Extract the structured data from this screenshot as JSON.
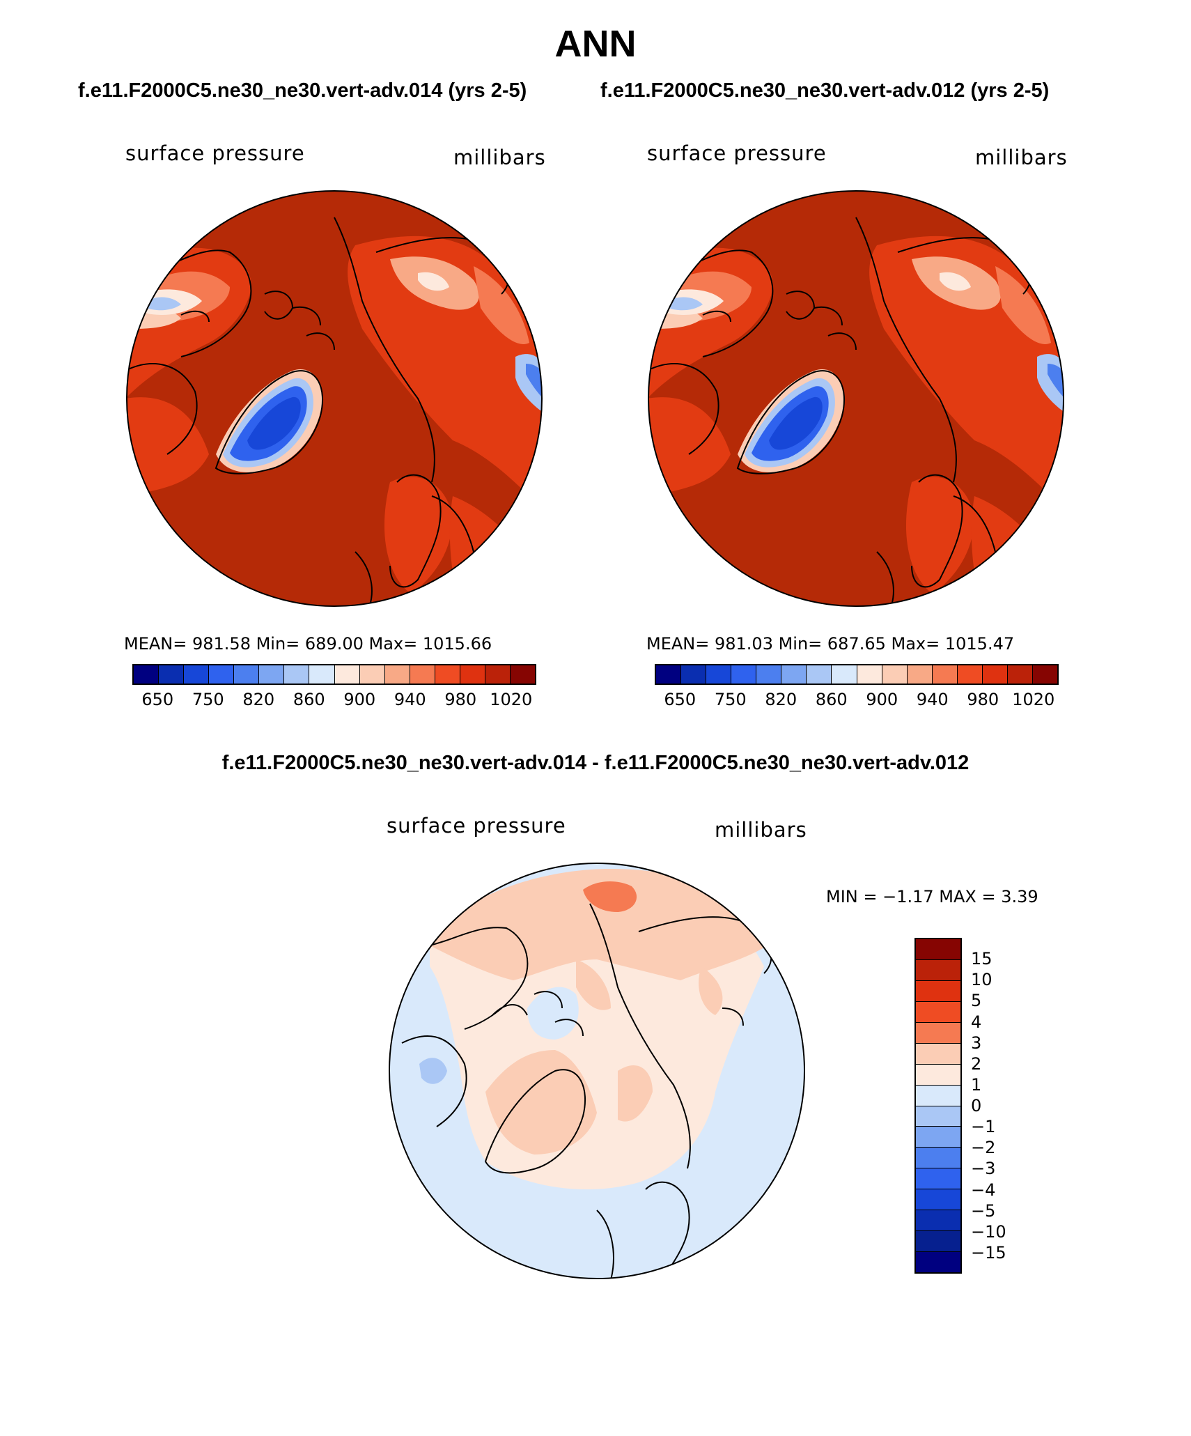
{
  "title": "ANN",
  "panels": [
    {
      "case_title": "f.e11.F2000C5.ne30_ne30.vert-adv.014 (yrs 2-5)",
      "variable": "surface pressure",
      "units": "millibars",
      "stats": "MEAN= 981.58   Min= 689.00   Max= 1015.66"
    },
    {
      "case_title": "f.e11.F2000C5.ne30_ne30.vert-adv.012 (yrs 2-5)",
      "variable": "surface pressure",
      "units": "millibars",
      "stats": "MEAN= 981.03   Min= 687.65   Max= 1015.47"
    }
  ],
  "diff_panel": {
    "case_title": "f.e11.F2000C5.ne30_ne30.vert-adv.014 - f.e11.F2000C5.ne30_ne30.vert-adv.012",
    "variable": "surface pressure",
    "units": "millibars",
    "stats": "MIN =   −1.17  MAX =     3.39"
  },
  "colorbar_main": {
    "colors": [
      "#000080",
      "#0a2eb0",
      "#1747d8",
      "#2f62ee",
      "#4c7fef",
      "#7da6f2",
      "#aac7f5",
      "#d9e9fb",
      "#fde9dd",
      "#fbcdb5",
      "#f8a986",
      "#f57a52",
      "#ef4c23",
      "#df3210",
      "#bb2209",
      "#860502"
    ],
    "labels": [
      "650",
      "750",
      "820",
      "860",
      "900",
      "940",
      "980",
      "1020"
    ]
  },
  "colorbar_diff": {
    "colors": [
      "#860502",
      "#bb2209",
      "#df3210",
      "#ef4c23",
      "#f57a52",
      "#fbcdb5",
      "#fde9dd",
      "#d9e9fb",
      "#aac7f5",
      "#7da6f2",
      "#4c7fef",
      "#2f62ee",
      "#1747d8",
      "#0a2eb0",
      "#06208f",
      "#000080"
    ],
    "labels": [
      "15",
      "10",
      "5",
      "4",
      "3",
      "2",
      "1",
      "0",
      "−1",
      "−2",
      "−3",
      "−4",
      "−5",
      "−10",
      "−15"
    ]
  },
  "map_colors": {
    "high": "#b52a07",
    "mid": "#e23b12",
    "low_orange": "#f57a52",
    "light_orange": "#fbcdb5",
    "cream": "#fde9dd",
    "pale_blue": "#d9e9fb",
    "light_blue": "#aac7f5",
    "blue": "#2f62ee",
    "deep_blue": "#1747d8"
  }
}
